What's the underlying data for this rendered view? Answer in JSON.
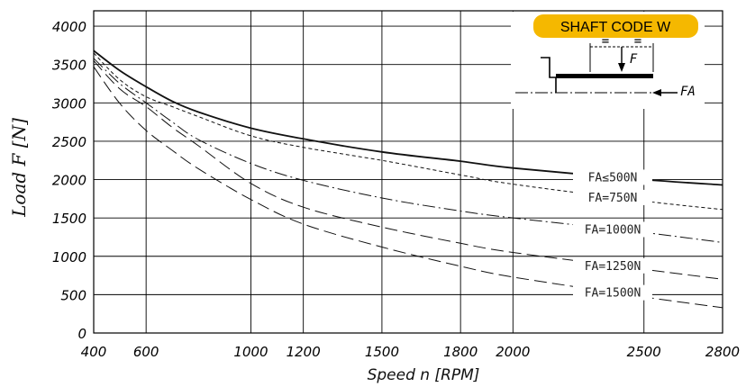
{
  "chart_data": {
    "type": "line",
    "xlabel": "Speed n [RPM]",
    "ylabel": "Load F [N]",
    "xlim": [
      400,
      2800
    ],
    "ylim": [
      0,
      4200
    ],
    "x_ticks": [
      {
        "value": 400,
        "label": "400"
      },
      {
        "value": 600,
        "label": "600"
      },
      {
        "value": 1000,
        "label": "1000"
      },
      {
        "value": 1200,
        "label": "1200"
      },
      {
        "value": 1500,
        "label": "1500"
      },
      {
        "value": 1800,
        "label": "1800"
      },
      {
        "value": 2000,
        "label": "2000"
      },
      {
        "value": 2500,
        "label": "2500"
      },
      {
        "value": 2800,
        "label": "2800"
      }
    ],
    "y_ticks": [
      0,
      500,
      1000,
      1500,
      2000,
      2500,
      3000,
      3500,
      4000
    ],
    "grid": true,
    "series": [
      {
        "name": "FA≤500N",
        "style": "solid",
        "points": [
          [
            400,
            3680
          ],
          [
            500,
            3420
          ],
          [
            600,
            3210
          ],
          [
            700,
            3020
          ],
          [
            800,
            2880
          ],
          [
            1000,
            2670
          ],
          [
            1200,
            2530
          ],
          [
            1500,
            2360
          ],
          [
            1800,
            2240
          ],
          [
            2000,
            2150
          ],
          [
            2500,
            2000
          ],
          [
            2800,
            1930
          ]
        ]
      },
      {
        "name": "FA=750N",
        "style": "short-dash",
        "points": [
          [
            400,
            3650
          ],
          [
            500,
            3300
          ],
          [
            600,
            3080
          ],
          [
            700,
            2950
          ],
          [
            800,
            2820
          ],
          [
            1000,
            2570
          ],
          [
            1200,
            2420
          ],
          [
            1500,
            2250
          ],
          [
            1800,
            2060
          ],
          [
            2000,
            1940
          ],
          [
            2500,
            1720
          ],
          [
            2800,
            1610
          ]
        ]
      },
      {
        "name": "FA=1000N",
        "style": "dash-dot",
        "points": [
          [
            400,
            3580
          ],
          [
            500,
            3250
          ],
          [
            600,
            3000
          ],
          [
            700,
            2750
          ],
          [
            800,
            2520
          ],
          [
            1000,
            2210
          ],
          [
            1200,
            1990
          ],
          [
            1500,
            1760
          ],
          [
            1800,
            1590
          ],
          [
            2000,
            1500
          ],
          [
            2500,
            1310
          ],
          [
            2800,
            1180
          ]
        ]
      },
      {
        "name": "FA=1250N",
        "style": "long-dash",
        "points": [
          [
            400,
            3550
          ],
          [
            500,
            3180
          ],
          [
            600,
            2950
          ],
          [
            700,
            2680
          ],
          [
            800,
            2440
          ],
          [
            1000,
            1950
          ],
          [
            1200,
            1640
          ],
          [
            1500,
            1380
          ],
          [
            1800,
            1170
          ],
          [
            2000,
            1050
          ],
          [
            2500,
            830
          ],
          [
            2800,
            700
          ]
        ]
      },
      {
        "name": "FA=1500N",
        "style": "long-dash",
        "points": [
          [
            400,
            3470
          ],
          [
            500,
            2990
          ],
          [
            600,
            2640
          ],
          [
            700,
            2380
          ],
          [
            800,
            2140
          ],
          [
            1000,
            1740
          ],
          [
            1200,
            1420
          ],
          [
            1500,
            1120
          ],
          [
            1800,
            870
          ],
          [
            2000,
            730
          ],
          [
            2500,
            470
          ],
          [
            2800,
            330
          ]
        ]
      }
    ],
    "inset": {
      "title": "SHAFT CODE W",
      "title_bg": "#f5b800",
      "labels": [
        "=",
        "=",
        "F",
        "FA"
      ]
    }
  }
}
